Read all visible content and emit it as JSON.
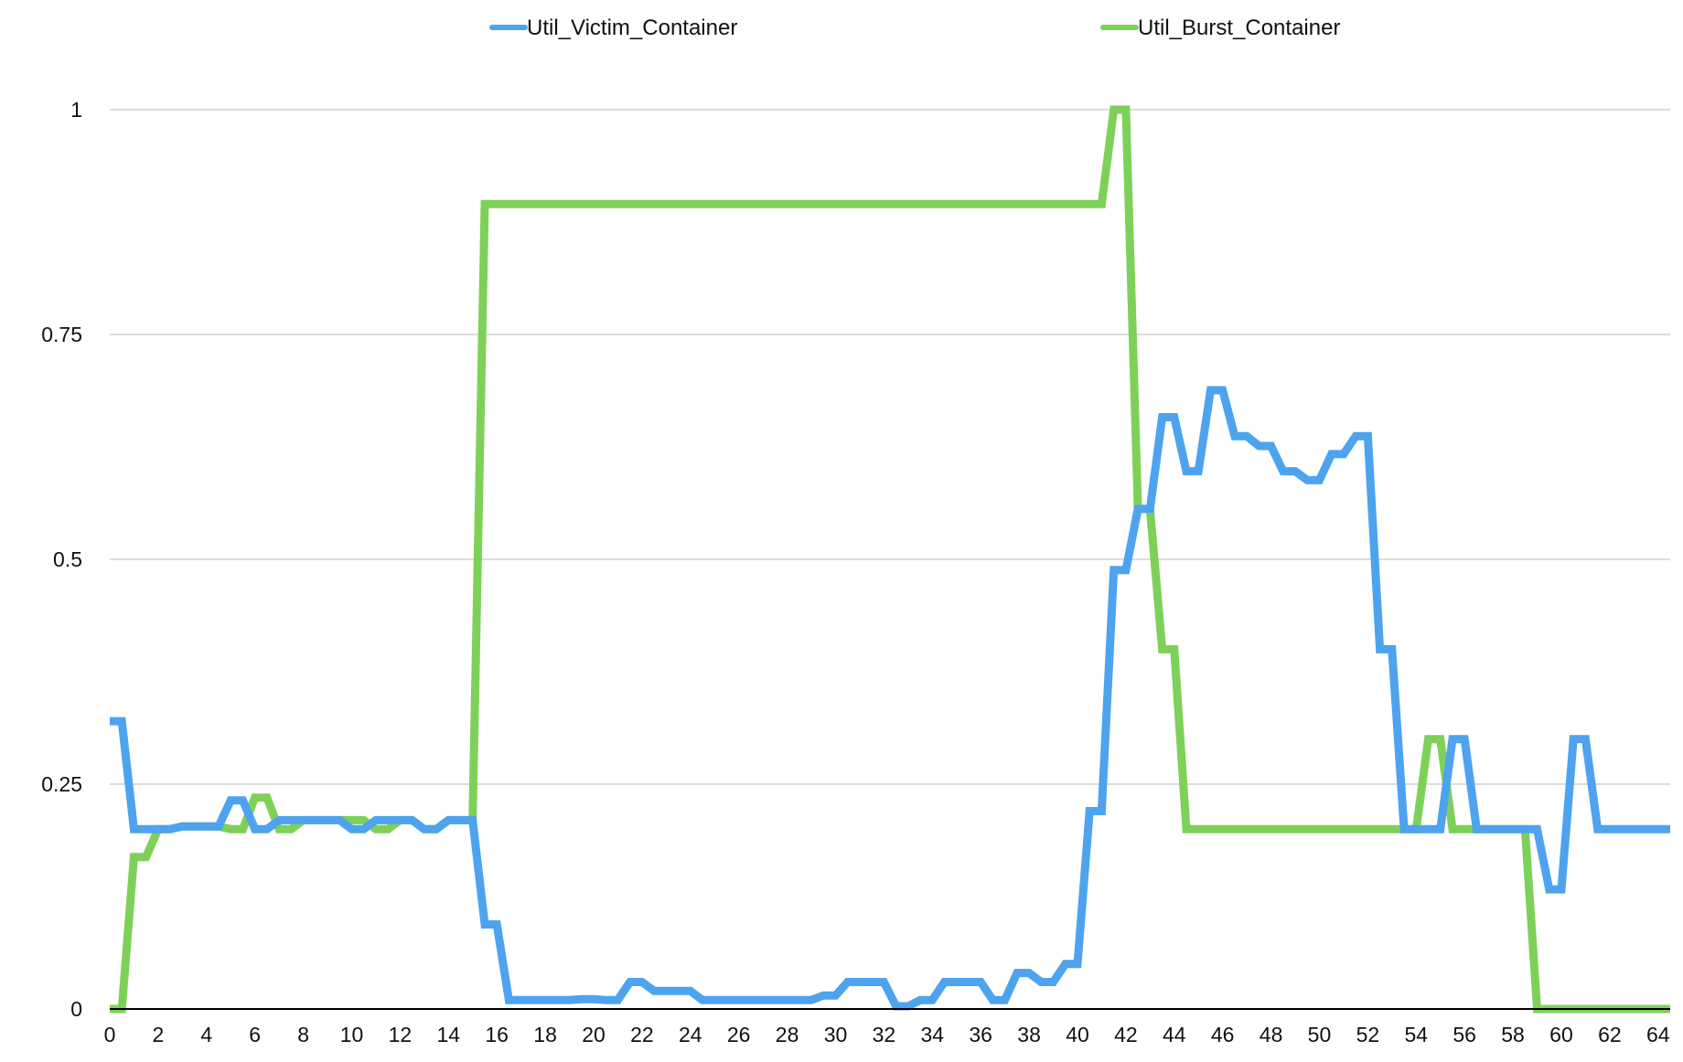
{
  "chart_data": {
    "type": "line",
    "title": "",
    "xlabel": "",
    "ylabel": "",
    "xlim": [
      0,
      64.5
    ],
    "ylim": [
      0,
      1
    ],
    "x_ticks": [
      "0",
      "2",
      "4",
      "6",
      "8",
      "10",
      "12",
      "14",
      "16",
      "18",
      "20",
      "22",
      "24",
      "26",
      "28",
      "30",
      "32",
      "34",
      "36",
      "38",
      "40",
      "42",
      "44",
      "46",
      "48",
      "50",
      "52",
      "54",
      "56",
      "58",
      "60",
      "62",
      "64"
    ],
    "y_ticks": [
      "0",
      "0.25",
      "0.5",
      "0.75",
      "1"
    ],
    "grid": "horizontal",
    "legend_position": "top",
    "series": [
      {
        "name": "Util_Victim_Container",
        "color": "#4da3ee",
        "points": [
          [
            0,
            0.32
          ],
          [
            0.5,
            0.32
          ],
          [
            1,
            0.2
          ],
          [
            1.5,
            0.2
          ],
          [
            2,
            0.2
          ],
          [
            2.5,
            0.2
          ],
          [
            3,
            0.203
          ],
          [
            3.5,
            0.203
          ],
          [
            4,
            0.203
          ],
          [
            4.5,
            0.203
          ],
          [
            5,
            0.232
          ],
          [
            5.5,
            0.232
          ],
          [
            6,
            0.2
          ],
          [
            6.5,
            0.2
          ],
          [
            7,
            0.21
          ],
          [
            7.5,
            0.21
          ],
          [
            8,
            0.21
          ],
          [
            8.5,
            0.21
          ],
          [
            9,
            0.21
          ],
          [
            9.5,
            0.21
          ],
          [
            10,
            0.2
          ],
          [
            10.5,
            0.2
          ],
          [
            11,
            0.21
          ],
          [
            11.5,
            0.21
          ],
          [
            12,
            0.21
          ],
          [
            12.5,
            0.21
          ],
          [
            13,
            0.2
          ],
          [
            13.5,
            0.2
          ],
          [
            14,
            0.21
          ],
          [
            14.5,
            0.21
          ],
          [
            15,
            0.21
          ],
          [
            15.5,
            0.094
          ],
          [
            16,
            0.094
          ],
          [
            16.5,
            0.01
          ],
          [
            17,
            0.01
          ],
          [
            17.5,
            0.01
          ],
          [
            18,
            0.01
          ],
          [
            18.5,
            0.01
          ],
          [
            19,
            0.01
          ],
          [
            19.5,
            0.011
          ],
          [
            20,
            0.011
          ],
          [
            20.5,
            0.01
          ],
          [
            21,
            0.01
          ],
          [
            21.5,
            0.03
          ],
          [
            22,
            0.03
          ],
          [
            22.5,
            0.02
          ],
          [
            23,
            0.02
          ],
          [
            23.5,
            0.02
          ],
          [
            24,
            0.02
          ],
          [
            24.5,
            0.01
          ],
          [
            25,
            0.01
          ],
          [
            25.5,
            0.01
          ],
          [
            26,
            0.01
          ],
          [
            26.5,
            0.01
          ],
          [
            27,
            0.01
          ],
          [
            27.5,
            0.01
          ],
          [
            28,
            0.01
          ],
          [
            28.5,
            0.01
          ],
          [
            29,
            0.01
          ],
          [
            29.5,
            0.015
          ],
          [
            30,
            0.015
          ],
          [
            30.5,
            0.03
          ],
          [
            31,
            0.03
          ],
          [
            31.5,
            0.03
          ],
          [
            32,
            0.03
          ],
          [
            32.5,
            0.003
          ],
          [
            33,
            0.003
          ],
          [
            33.5,
            0.01
          ],
          [
            34,
            0.01
          ],
          [
            34.5,
            0.03
          ],
          [
            35,
            0.03
          ],
          [
            35.5,
            0.03
          ],
          [
            36,
            0.03
          ],
          [
            36.5,
            0.01
          ],
          [
            37,
            0.01
          ],
          [
            37.5,
            0.04
          ],
          [
            38,
            0.04
          ],
          [
            38.5,
            0.03
          ],
          [
            39,
            0.03
          ],
          [
            39.5,
            0.05
          ],
          [
            40,
            0.05
          ],
          [
            40.5,
            0.22
          ],
          [
            41,
            0.22
          ],
          [
            41.5,
            0.488
          ],
          [
            42,
            0.488
          ],
          [
            42.5,
            0.556
          ],
          [
            43,
            0.556
          ],
          [
            43.5,
            0.658
          ],
          [
            44,
            0.658
          ],
          [
            44.5,
            0.598
          ],
          [
            45,
            0.598
          ],
          [
            45.5,
            0.688
          ],
          [
            46,
            0.688
          ],
          [
            46.5,
            0.637
          ],
          [
            47,
            0.637
          ],
          [
            47.5,
            0.626
          ],
          [
            48,
            0.626
          ],
          [
            48.5,
            0.598
          ],
          [
            49,
            0.598
          ],
          [
            49.5,
            0.588
          ],
          [
            50,
            0.588
          ],
          [
            50.5,
            0.617
          ],
          [
            51,
            0.617
          ],
          [
            51.5,
            0.637
          ],
          [
            52,
            0.637
          ],
          [
            52.5,
            0.4
          ],
          [
            53,
            0.4
          ],
          [
            53.5,
            0.2
          ],
          [
            54,
            0.2
          ],
          [
            54.5,
            0.2
          ],
          [
            55,
            0.2
          ],
          [
            55.5,
            0.3
          ],
          [
            56,
            0.3
          ],
          [
            56.5,
            0.2
          ],
          [
            57,
            0.2
          ],
          [
            57.5,
            0.2
          ],
          [
            58,
            0.2
          ],
          [
            58.5,
            0.2
          ],
          [
            59,
            0.2
          ],
          [
            59.5,
            0.133
          ],
          [
            60,
            0.133
          ],
          [
            60.5,
            0.3
          ],
          [
            61,
            0.3
          ],
          [
            61.5,
            0.2
          ],
          [
            62,
            0.2
          ],
          [
            62.5,
            0.2
          ],
          [
            63,
            0.2
          ],
          [
            63.5,
            0.2
          ],
          [
            64,
            0.2
          ],
          [
            64.5,
            0.2
          ]
        ]
      },
      {
        "name": "Util_Burst_Container",
        "color": "#7ed158",
        "points": [
          [
            0,
            0
          ],
          [
            0.5,
            0
          ],
          [
            1,
            0.169
          ],
          [
            1.5,
            0.169
          ],
          [
            2,
            0.2
          ],
          [
            2.5,
            0.2
          ],
          [
            3,
            0.203
          ],
          [
            3.5,
            0.203
          ],
          [
            4,
            0.203
          ],
          [
            4.5,
            0.203
          ],
          [
            5,
            0.2
          ],
          [
            5.5,
            0.2
          ],
          [
            6,
            0.235
          ],
          [
            6.5,
            0.235
          ],
          [
            7,
            0.2
          ],
          [
            7.5,
            0.2
          ],
          [
            8,
            0.21
          ],
          [
            8.5,
            0.21
          ],
          [
            9,
            0.21
          ],
          [
            9.5,
            0.21
          ],
          [
            10,
            0.21
          ],
          [
            10.5,
            0.21
          ],
          [
            11,
            0.2
          ],
          [
            11.5,
            0.2
          ],
          [
            12,
            0.21
          ],
          [
            12.5,
            0.21
          ],
          [
            13,
            0.2
          ],
          [
            13.5,
            0.2
          ],
          [
            14,
            0.21
          ],
          [
            14.5,
            0.21
          ],
          [
            15,
            0.21
          ],
          [
            15.5,
            0.895
          ],
          [
            16,
            0.895
          ],
          [
            40.5,
            0.895
          ],
          [
            41,
            0.895
          ],
          [
            41.5,
            1.0
          ],
          [
            42,
            1.0
          ],
          [
            42.5,
            0.556
          ],
          [
            43,
            0.556
          ],
          [
            43.5,
            0.4
          ],
          [
            44,
            0.4
          ],
          [
            44.5,
            0.2
          ],
          [
            45,
            0.2
          ],
          [
            53.5,
            0.2
          ],
          [
            54,
            0.2
          ],
          [
            54.5,
            0.3
          ],
          [
            55,
            0.3
          ],
          [
            55.5,
            0.2
          ],
          [
            56,
            0.2
          ],
          [
            58.5,
            0.2
          ],
          [
            59,
            0
          ],
          [
            64.5,
            0
          ]
        ]
      }
    ]
  }
}
